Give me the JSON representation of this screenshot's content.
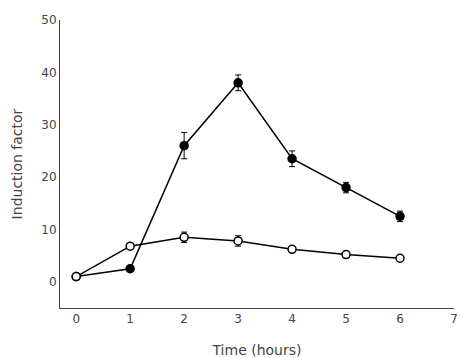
{
  "chart_data": {
    "type": "line",
    "xlabel": "Time (hours)",
    "ylabel": "Induction factor",
    "x": [
      0,
      1,
      2,
      3,
      4,
      5,
      6
    ],
    "series": [
      {
        "color": "#000000",
        "marker": "circle",
        "line_style": "solid",
        "values": [
          1.0,
          2.5,
          26.0,
          38.0,
          23.5,
          18.0,
          12.5
        ],
        "yerr": [
          0.5,
          0.5,
          2.5,
          1.5,
          1.5,
          1.0,
          1.0
        ]
      },
      {
        "color": "#000000",
        "marker": "circle-open",
        "line_style": "solid",
        "values": [
          1.0,
          6.8,
          8.5,
          7.8,
          6.2,
          5.2,
          4.5
        ],
        "yerr": [
          0.4,
          0.5,
          1.0,
          1.0,
          0.6,
          0.5,
          0.5
        ]
      }
    ],
    "xlim": [
      -0.3,
      7.0
    ],
    "ylim": [
      -5,
      50
    ],
    "xticks": [
      0,
      1,
      2,
      3,
      4,
      5,
      6,
      7
    ],
    "yticks": [
      0,
      10,
      20,
      30,
      40,
      50
    ],
    "grid": false
  }
}
